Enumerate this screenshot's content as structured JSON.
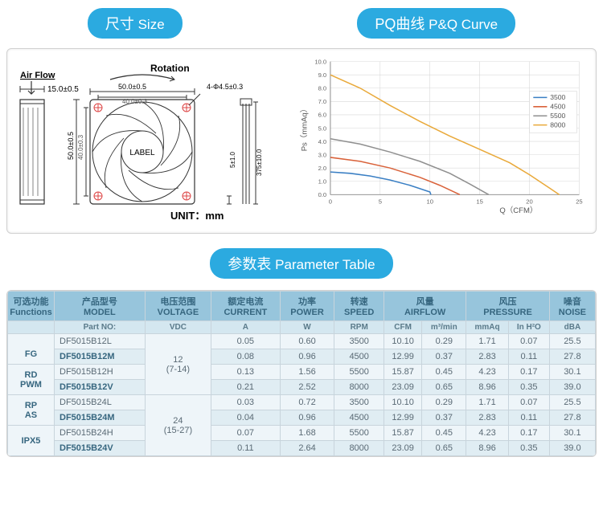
{
  "headers": {
    "size_cn": "尺寸",
    "size_en": "Size",
    "curve_cn": "PQ曲线",
    "curve_en": "P&Q Curve",
    "param_cn": "参数表",
    "param_en": "Parameter Table"
  },
  "diagram": {
    "airflow": "Air Flow",
    "rotation": "Rotation",
    "label": "LABEL",
    "unit": "UNIT：mm",
    "dim_w": "50.0±0.5",
    "dim_wi": "40.0±0.3",
    "dim_h": "50.0±0.5",
    "dim_hi": "40.0±0.3",
    "dim_d": "15.0±0.5",
    "dim_hole": "4-Φ4.5±0.3",
    "dim_cable_gap": "5±1.0",
    "dim_cable_len": "375±10.0"
  },
  "chart": {
    "type": "line",
    "xlabel": "Q（CFM）",
    "ylabel": "Ps（mmAq）",
    "xlim": [
      0,
      25
    ],
    "xtick_step": 5,
    "ylim": [
      0,
      10
    ],
    "ytick_step": 1,
    "background": "#ffffff",
    "grid_color": "#d8d8d8",
    "axis_color": "#888888",
    "series": [
      {
        "name": "3500",
        "color": "#3a7fc4",
        "points": [
          [
            0,
            1.7
          ],
          [
            2,
            1.6
          ],
          [
            4,
            1.4
          ],
          [
            6,
            1.1
          ],
          [
            8,
            0.7
          ],
          [
            10,
            0.2
          ],
          [
            10.1,
            0
          ]
        ]
      },
      {
        "name": "4500",
        "color": "#d9623a",
        "points": [
          [
            0,
            2.8
          ],
          [
            3,
            2.5
          ],
          [
            6,
            2.0
          ],
          [
            9,
            1.3
          ],
          [
            11,
            0.7
          ],
          [
            13,
            0
          ]
        ]
      },
      {
        "name": "5500",
        "color": "#8f8f8f",
        "points": [
          [
            0,
            4.2
          ],
          [
            3,
            3.8
          ],
          [
            6,
            3.2
          ],
          [
            9,
            2.5
          ],
          [
            12,
            1.6
          ],
          [
            14,
            0.8
          ],
          [
            15.9,
            0
          ]
        ]
      },
      {
        "name": "8000",
        "color": "#e9a93a",
        "points": [
          [
            0,
            9.0
          ],
          [
            3,
            8.0
          ],
          [
            6,
            6.7
          ],
          [
            9,
            5.5
          ],
          [
            12,
            4.4
          ],
          [
            15,
            3.4
          ],
          [
            18,
            2.4
          ],
          [
            20,
            1.5
          ],
          [
            22,
            0.5
          ],
          [
            23,
            0
          ]
        ]
      }
    ]
  },
  "table": {
    "head1": [
      {
        "cn": "可选功能",
        "en": "Functions"
      },
      {
        "cn": "产品型号",
        "en": "MODEL"
      },
      {
        "cn": "电压范围",
        "en": "VOLTAGE"
      },
      {
        "cn": "额定电流",
        "en": "CURRENT"
      },
      {
        "cn": "功率",
        "en": "POWER"
      },
      {
        "cn": "转速",
        "en": "SPEED"
      },
      {
        "cn": "风量",
        "en": "AIRFLOW",
        "span": 2
      },
      {
        "cn": "风压",
        "en": "PRESSURE",
        "span": 2
      },
      {
        "cn": "噪音",
        "en": "NOISE"
      }
    ],
    "head2": [
      "",
      "Part NO:",
      "VDC",
      "A",
      "W",
      "RPM",
      "CFM",
      "m³/min",
      "mmAq",
      "In H²O",
      "dBA"
    ],
    "functions": [
      "FG",
      "RD",
      "PWM",
      "RP",
      "AS",
      "IPX5"
    ],
    "voltage_groups": [
      {
        "v": "12",
        "range": "(7-14)",
        "span": 4
      },
      {
        "v": "24",
        "range": "(15-27)",
        "span": 4
      }
    ],
    "rows": [
      [
        "DF5015B12L",
        "0.05",
        "0.60",
        "3500",
        "10.10",
        "0.29",
        "1.71",
        "0.07",
        "25.5"
      ],
      [
        "DF5015B12M",
        "0.08",
        "0.96",
        "4500",
        "12.99",
        "0.37",
        "2.83",
        "0.11",
        "27.8"
      ],
      [
        "DF5015B12H",
        "0.13",
        "1.56",
        "5500",
        "15.87",
        "0.45",
        "4.23",
        "0.17",
        "30.1"
      ],
      [
        "DF5015B12V",
        "0.21",
        "2.52",
        "8000",
        "23.09",
        "0.65",
        "8.96",
        "0.35",
        "39.0"
      ],
      [
        "DF5015B24L",
        "0.03",
        "0.72",
        "3500",
        "10.10",
        "0.29",
        "1.71",
        "0.07",
        "25.5"
      ],
      [
        "DF5015B24M",
        "0.04",
        "0.96",
        "4500",
        "12.99",
        "0.37",
        "2.83",
        "0.11",
        "27.8"
      ],
      [
        "DF5015B24H",
        "0.07",
        "1.68",
        "5500",
        "15.87",
        "0.45",
        "4.23",
        "0.17",
        "30.1"
      ],
      [
        "DF5015B24V",
        "0.11",
        "2.64",
        "8000",
        "23.09",
        "0.65",
        "8.96",
        "0.35",
        "39.0"
      ]
    ]
  }
}
